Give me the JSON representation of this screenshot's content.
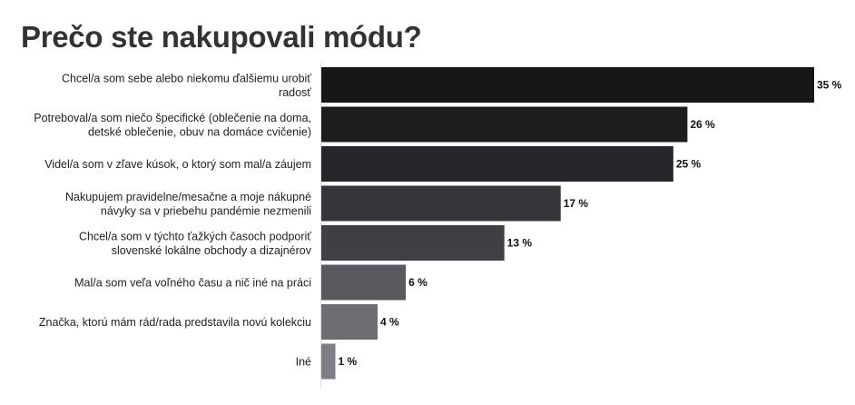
{
  "chart_data": {
    "type": "bar",
    "orientation": "horizontal",
    "title": "Prečo ste nakupovali módu?",
    "categories": [
      [
        "Chcel/a som sebe alebo niekomu ďalšiemu urobiť",
        "radosť"
      ],
      [
        "Potreboval/a som niečo špecifické (oblečenie na doma,",
        "detské oblečenie, obuv na domáce cvičenie)"
      ],
      [
        "Videl/a som v zľave kúsok, o ktorý som mal/a záujem"
      ],
      [
        "Nakupujem pravidelne/mesačne a moje nákupné",
        "návyky sa v priebehu pandémie nezmenili"
      ],
      [
        "Chcel/a som v týchto ťažkých časoch podporiť",
        "slovenské lokálne obchody a dizajnérov"
      ],
      [
        "Mal/a som veľa voľného času a nič iné na práci"
      ],
      [
        "Značka, ktorú mám rád/rada predstavila novú kolekciu"
      ],
      [
        "Iné"
      ]
    ],
    "values": [
      35,
      26,
      25,
      17,
      13,
      6,
      4,
      1
    ],
    "value_labels": [
      "35 %",
      "26 %",
      "25 %",
      "17 %",
      "13 %",
      "6 %",
      "4 %",
      "1 %"
    ],
    "colors": [
      "#17171a",
      "#1d1d20",
      "#27272b",
      "#35353a",
      "#3f3f44",
      "#58585e",
      "#6d6d73",
      "#7e7e86"
    ],
    "xlim": [
      0,
      35
    ],
    "grid": false,
    "legend": "none"
  }
}
